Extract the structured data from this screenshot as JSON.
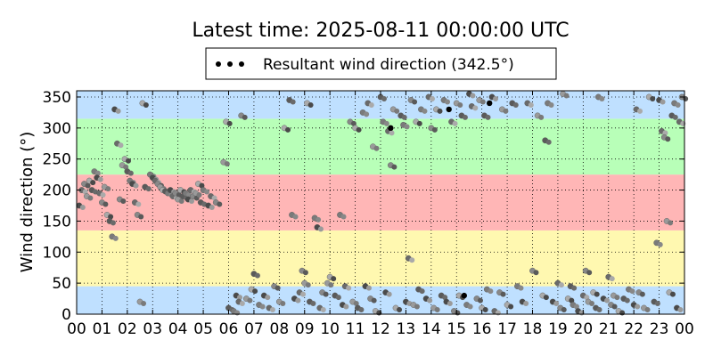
{
  "chart_data": {
    "type": "scatter",
    "title": "Latest time: 2025-08-11 00:00:00 UTC",
    "xlabel": "",
    "ylabel": "Wind direction (°)",
    "legend": {
      "label": "Resultant wind direction (342.5°)",
      "placement": "top-center, above axes"
    },
    "x_unit": "hour (UTC)",
    "xlim": [
      0,
      24
    ],
    "ylim": [
      0,
      360
    ],
    "x_ticks": [
      "00",
      "01",
      "02",
      "03",
      "04",
      "05",
      "06",
      "07",
      "08",
      "09",
      "10",
      "11",
      "12",
      "13",
      "14",
      "15",
      "16",
      "17",
      "18",
      "19",
      "20",
      "21",
      "22",
      "23",
      "00"
    ],
    "y_ticks": [
      0,
      50,
      100,
      150,
      200,
      250,
      300,
      350
    ],
    "grid": "dotted, both axes",
    "bands": [
      {
        "from": 0,
        "to": 45,
        "color": "#bfe0ff"
      },
      {
        "from": 45,
        "to": 135,
        "color": "#fff8b0"
      },
      {
        "from": 135,
        "to": 225,
        "color": "#ffb6b6"
      },
      {
        "from": 225,
        "to": 315,
        "color": "#b8ffb8"
      },
      {
        "from": 315,
        "to": 360,
        "color": "#bfe0ff"
      }
    ],
    "series": [
      {
        "marker_color": "gray scale (#404040–#b0b0b0)",
        "points": [
          [
            0.1,
            175
          ],
          [
            0.2,
            200
          ],
          [
            0.3,
            210
          ],
          [
            0.4,
            190
          ],
          [
            0.5,
            215
          ],
          [
            0.6,
            200
          ],
          [
            0.7,
            230
          ],
          [
            0.8,
            220
          ],
          [
            0.9,
            195
          ],
          [
            1.0,
            180
          ],
          [
            1.1,
            205
          ],
          [
            1.2,
            160
          ],
          [
            1.3,
            150
          ],
          [
            1.4,
            125
          ],
          [
            1.5,
            330
          ],
          [
            1.6,
            275
          ],
          [
            1.7,
            185
          ],
          [
            1.8,
            240
          ],
          [
            1.9,
            250
          ],
          [
            2.0,
            230
          ],
          [
            2.1,
            215
          ],
          [
            2.2,
            210
          ],
          [
            2.3,
            180
          ],
          [
            2.4,
            160
          ],
          [
            2.5,
            20
          ],
          [
            2.6,
            340
          ],
          [
            2.7,
            205
          ],
          [
            2.9,
            225
          ],
          [
            3.0,
            220
          ],
          [
            3.1,
            215
          ],
          [
            3.2,
            210
          ],
          [
            3.3,
            205
          ],
          [
            3.4,
            200
          ],
          [
            3.5,
            198
          ],
          [
            3.6,
            195
          ],
          [
            3.7,
            200
          ],
          [
            3.8,
            190
          ],
          [
            3.9,
            195
          ],
          [
            4.0,
            185
          ],
          [
            4.1,
            200
          ],
          [
            4.2,
            190
          ],
          [
            4.3,
            195
          ],
          [
            4.4,
            185
          ],
          [
            4.5,
            200
          ],
          [
            4.6,
            190
          ],
          [
            4.7,
            195
          ],
          [
            4.8,
            210
          ],
          [
            4.9,
            180
          ],
          [
            5.0,
            200
          ],
          [
            5.2,
            175
          ],
          [
            5.3,
            190
          ],
          [
            5.5,
            180
          ],
          [
            5.8,
            245
          ],
          [
            5.9,
            310
          ],
          [
            6.0,
            10
          ],
          [
            6.2,
            5
          ],
          [
            6.3,
            30
          ],
          [
            6.4,
            20
          ],
          [
            6.5,
            320
          ],
          [
            6.7,
            25
          ],
          [
            6.9,
            40
          ],
          [
            7.0,
            65
          ],
          [
            7.2,
            15
          ],
          [
            7.4,
            30
          ],
          [
            7.6,
            10
          ],
          [
            7.8,
            45
          ],
          [
            8.0,
            20
          ],
          [
            8.2,
            300
          ],
          [
            8.4,
            345
          ],
          [
            8.5,
            160
          ],
          [
            8.6,
            25
          ],
          [
            8.8,
            35
          ],
          [
            8.9,
            70
          ],
          [
            9.0,
            50
          ],
          [
            9.1,
            340
          ],
          [
            9.2,
            20
          ],
          [
            9.4,
            155
          ],
          [
            9.5,
            140
          ],
          [
            9.6,
            10
          ],
          [
            9.7,
            35
          ],
          [
            9.9,
            50
          ],
          [
            10.0,
            60
          ],
          [
            10.2,
            30
          ],
          [
            10.4,
            160
          ],
          [
            10.5,
            15
          ],
          [
            10.6,
            45
          ],
          [
            10.8,
            310
          ],
          [
            10.9,
            20
          ],
          [
            11.0,
            300
          ],
          [
            11.1,
            10
          ],
          [
            11.3,
            325
          ],
          [
            11.4,
            45
          ],
          [
            11.5,
            340
          ],
          [
            11.6,
            25
          ],
          [
            11.7,
            270
          ],
          [
            11.8,
            5
          ],
          [
            12.0,
            350
          ],
          [
            12.1,
            310
          ],
          [
            12.2,
            35
          ],
          [
            12.3,
            295
          ],
          [
            12.4,
            240
          ],
          [
            12.5,
            330
          ],
          [
            12.6,
            10
          ],
          [
            12.8,
            320
          ],
          [
            12.9,
            305
          ],
          [
            13.0,
            20
          ],
          [
            13.1,
            90
          ],
          [
            13.2,
            345
          ],
          [
            13.3,
            15
          ],
          [
            13.4,
            310
          ],
          [
            13.5,
            40
          ],
          [
            13.6,
            330
          ],
          [
            13.8,
            25
          ],
          [
            13.9,
            350
          ],
          [
            14.0,
            300
          ],
          [
            14.1,
            10
          ],
          [
            14.2,
            330
          ],
          [
            14.4,
            30
          ],
          [
            14.5,
            345
          ],
          [
            14.6,
            20
          ],
          [
            14.8,
            310
          ],
          [
            14.9,
            5
          ],
          [
            15.0,
            340
          ],
          [
            15.1,
            30
          ],
          [
            15.2,
            320
          ],
          [
            15.4,
            15
          ],
          [
            15.5,
            355
          ],
          [
            15.6,
            335
          ],
          [
            15.8,
            25
          ],
          [
            15.9,
            345
          ],
          [
            16.0,
            10
          ],
          [
            16.1,
            320
          ],
          [
            16.2,
            40
          ],
          [
            16.4,
            350
          ],
          [
            16.5,
            5
          ],
          [
            16.7,
            35
          ],
          [
            16.8,
            330
          ],
          [
            17.0,
            15
          ],
          [
            17.2,
            340
          ],
          [
            17.4,
            45
          ],
          [
            17.6,
            20
          ],
          [
            17.8,
            340
          ],
          [
            18.0,
            70
          ],
          [
            18.2,
            320
          ],
          [
            18.4,
            30
          ],
          [
            18.5,
            280
          ],
          [
            18.6,
            340
          ],
          [
            18.8,
            20
          ],
          [
            19.0,
            50
          ],
          [
            19.1,
            10
          ],
          [
            19.2,
            355
          ],
          [
            19.4,
            25
          ],
          [
            19.5,
            45
          ],
          [
            19.6,
            15
          ],
          [
            19.8,
            5
          ],
          [
            20.0,
            30
          ],
          [
            20.1,
            70
          ],
          [
            20.2,
            20
          ],
          [
            20.4,
            35
          ],
          [
            20.5,
            10
          ],
          [
            20.6,
            350
          ],
          [
            20.8,
            25
          ],
          [
            21.0,
            60
          ],
          [
            21.1,
            15
          ],
          [
            21.2,
            30
          ],
          [
            21.4,
            5
          ],
          [
            21.6,
            25
          ],
          [
            21.8,
            40
          ],
          [
            22.0,
            15
          ],
          [
            22.1,
            330
          ],
          [
            22.2,
            35
          ],
          [
            22.4,
            10
          ],
          [
            22.6,
            350
          ],
          [
            22.8,
            20
          ],
          [
            22.9,
            115
          ],
          [
            23.0,
            345
          ],
          [
            23.1,
            295
          ],
          [
            23.2,
            285
          ],
          [
            23.3,
            150
          ],
          [
            23.4,
            35
          ],
          [
            23.5,
            320
          ],
          [
            23.6,
            340
          ],
          [
            23.7,
            10
          ],
          [
            23.8,
            310
          ],
          [
            23.9,
            350
          ]
        ]
      },
      {
        "marker_color": "black",
        "points": [
          [
            12.4,
            300
          ],
          [
            14.7,
            330
          ],
          [
            15.3,
            30
          ],
          [
            16.3,
            340
          ]
        ]
      }
    ]
  }
}
